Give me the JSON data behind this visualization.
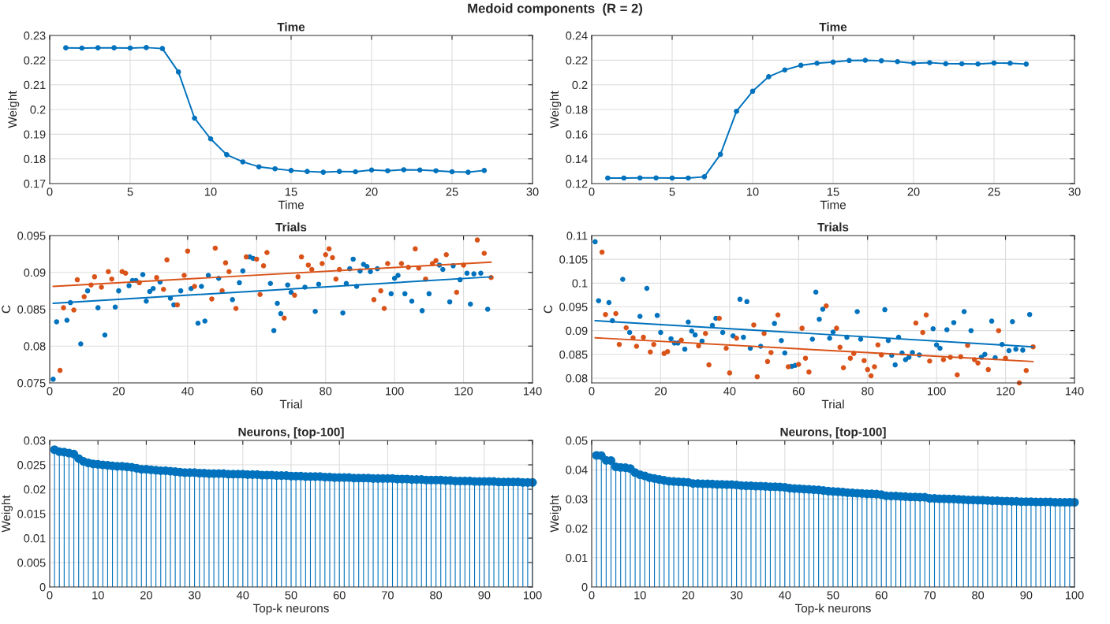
{
  "chart_data": [
    {
      "type": "line",
      "title": "Time",
      "xlabel": "Time",
      "ylabel": "Weight",
      "annotations": [
        "Medoid components  (R = 2)"
      ],
      "x": [
        1,
        2,
        3,
        4,
        5,
        6,
        7,
        8,
        9,
        10,
        11,
        12,
        13,
        14,
        15,
        16,
        17,
        18,
        19,
        20,
        21,
        22,
        23,
        24,
        25,
        26,
        27
      ],
      "series": [
        {
          "color": "#0072bd",
          "values": [
            0.225,
            0.2249,
            0.225,
            0.225,
            0.2249,
            0.2251,
            0.2247,
            0.2152,
            0.1965,
            0.1881,
            0.1817,
            0.1788,
            0.1768,
            0.176,
            0.1753,
            0.1749,
            0.1746,
            0.1749,
            0.1748,
            0.1755,
            0.1752,
            0.1756,
            0.1755,
            0.1752,
            0.1748,
            0.1746,
            0.1753
          ]
        }
      ],
      "xlim": [
        0,
        30
      ],
      "xticks": [
        0,
        5,
        10,
        15,
        20,
        25,
        30
      ],
      "ylim": [
        0.17,
        0.23
      ],
      "yticks": [
        0.17,
        0.18,
        0.19,
        0.2,
        0.21,
        0.22,
        0.23
      ],
      "grid": true,
      "marker": "circle",
      "line_style": "solid"
    },
    {
      "type": "line",
      "title": "Time",
      "xlabel": "Time",
      "ylabel": "Weight",
      "x": [
        1,
        2,
        3,
        4,
        5,
        6,
        7,
        8,
        9,
        10,
        11,
        12,
        13,
        14,
        15,
        16,
        17,
        18,
        19,
        20,
        21,
        22,
        23,
        24,
        25,
        26,
        27
      ],
      "series": [
        {
          "color": "#0072bd",
          "values": [
            0.1245,
            0.1245,
            0.1246,
            0.1246,
            0.1245,
            0.1245,
            0.1255,
            0.1437,
            0.1786,
            0.1948,
            0.2066,
            0.2121,
            0.2158,
            0.2175,
            0.2184,
            0.2197,
            0.2199,
            0.2195,
            0.2188,
            0.2175,
            0.218,
            0.2171,
            0.217,
            0.2169,
            0.2177,
            0.2175,
            0.2168
          ]
        }
      ],
      "xlim": [
        0,
        30
      ],
      "xticks": [
        0,
        5,
        10,
        15,
        20,
        25,
        30
      ],
      "ylim": [
        0.12,
        0.24
      ],
      "yticks": [
        0.12,
        0.14,
        0.16,
        0.18,
        0.2,
        0.22,
        0.24
      ],
      "grid": true,
      "marker": "circle",
      "line_style": "solid"
    },
    {
      "type": "scatter",
      "title": "Trials",
      "xlabel": "Trial",
      "ylabel": "C",
      "series": [
        {
          "type": "scatter",
          "color": "#0072bd",
          "x": [
            1,
            2,
            5,
            6,
            9,
            11,
            14,
            16,
            19,
            20,
            23,
            24,
            25,
            27,
            28,
            29,
            30,
            32,
            35,
            36,
            38,
            41,
            43,
            44,
            45,
            46,
            49,
            53,
            55,
            56,
            58,
            59,
            64,
            65,
            66,
            67,
            69,
            70,
            74,
            77,
            78,
            85,
            86,
            87,
            88,
            89,
            90,
            91,
            92,
            93,
            95,
            99,
            100,
            101,
            103,
            105,
            108,
            110,
            113,
            114,
            116,
            117,
            119,
            121,
            122,
            123,
            125,
            127
          ],
          "values": [
            0.0755,
            0.0833,
            0.0835,
            0.0859,
            0.0803,
            0.0875,
            0.0852,
            0.0815,
            0.0853,
            0.0875,
            0.0882,
            0.0889,
            0.0889,
            0.0897,
            0.0861,
            0.0874,
            0.0878,
            0.0887,
            0.0865,
            0.0856,
            0.0875,
            0.0878,
            0.0831,
            0.0881,
            0.0834,
            0.0896,
            0.0892,
            0.0863,
            0.0886,
            0.0902,
            0.0921,
            0.0919,
            0.0885,
            0.0821,
            0.0858,
            0.0844,
            0.0883,
            0.0873,
            0.088,
            0.0847,
            0.0884,
            0.0845,
            0.0885,
            0.0905,
            0.0918,
            0.0881,
            0.0902,
            0.0911,
            0.0908,
            0.0901,
            0.0905,
            0.0871,
            0.0892,
            0.0896,
            0.0871,
            0.0861,
            0.0848,
            0.0871,
            0.091,
            0.0904,
            0.086,
            0.0909,
            0.089,
            0.0899,
            0.0857,
            0.0898,
            0.0899,
            0.085
          ]
        },
        {
          "type": "scatter",
          "color": "#d95319",
          "x": [
            3,
            4,
            7,
            8,
            10,
            12,
            13,
            15,
            17,
            18,
            21,
            22,
            26,
            31,
            33,
            34,
            37,
            39,
            40,
            42,
            47,
            48,
            50,
            51,
            52,
            54,
            57,
            60,
            61,
            62,
            63,
            68,
            71,
            72,
            73,
            75,
            76,
            79,
            80,
            81,
            82,
            83,
            84,
            94,
            96,
            97,
            98,
            102,
            104,
            106,
            107,
            109,
            111,
            112,
            115,
            118,
            120,
            124,
            126,
            128
          ],
          "values": [
            0.0767,
            0.0852,
            0.0849,
            0.089,
            0.0867,
            0.0883,
            0.0894,
            0.088,
            0.0901,
            0.0891,
            0.0901,
            0.0899,
            0.0886,
            0.0893,
            0.0877,
            0.0917,
            0.0856,
            0.0896,
            0.0929,
            0.0881,
            0.0864,
            0.0933,
            0.0875,
            0.0913,
            0.0901,
            0.0851,
            0.0921,
            0.0918,
            0.087,
            0.0909,
            0.0927,
            0.0838,
            0.0869,
            0.0894,
            0.0921,
            0.091,
            0.0904,
            0.0912,
            0.0924,
            0.0932,
            0.092,
            0.0891,
            0.0904,
            0.0863,
            0.0875,
            0.0851,
            0.0912,
            0.0912,
            0.0907,
            0.0932,
            0.0906,
            0.0891,
            0.0912,
            0.0916,
            0.0924,
            0.0873,
            0.091,
            0.0944,
            0.0926,
            0.0893
          ]
        },
        {
          "type": "line",
          "color": "#0072bd",
          "x": [
            1,
            128
          ],
          "values": [
            0.0858,
            0.0894
          ]
        },
        {
          "type": "line",
          "color": "#d95319",
          "x": [
            1,
            128
          ],
          "values": [
            0.0881,
            0.0914
          ]
        }
      ],
      "xlim": [
        0,
        140
      ],
      "xticks": [
        0,
        20,
        40,
        60,
        80,
        100,
        120,
        140
      ],
      "ylim": [
        0.075,
        0.095
      ],
      "yticks": [
        0.075,
        0.08,
        0.085,
        0.09,
        0.095
      ],
      "grid": true
    },
    {
      "type": "scatter",
      "title": "Trials",
      "xlabel": "Trial",
      "ylabel": "C",
      "series": [
        {
          "type": "scatter",
          "color": "#0072bd",
          "x": [
            1,
            2,
            5,
            6,
            9,
            11,
            14,
            16,
            19,
            20,
            23,
            24,
            25,
            27,
            28,
            29,
            30,
            32,
            35,
            36,
            38,
            41,
            43,
            44,
            45,
            46,
            49,
            53,
            55,
            56,
            58,
            59,
            64,
            65,
            66,
            67,
            69,
            70,
            74,
            77,
            78,
            85,
            86,
            87,
            88,
            89,
            90,
            91,
            92,
            93,
            95,
            99,
            100,
            101,
            103,
            105,
            108,
            110,
            113,
            114,
            116,
            117,
            119,
            121,
            122,
            123,
            125,
            127
          ],
          "values": [
            0.1087,
            0.0963,
            0.0959,
            0.0921,
            0.1008,
            0.0896,
            0.093,
            0.0989,
            0.0932,
            0.0896,
            0.0883,
            0.0874,
            0.0874,
            0.0861,
            0.0918,
            0.0899,
            0.0891,
            0.0878,
            0.0911,
            0.0926,
            0.0896,
            0.0889,
            0.0966,
            0.0886,
            0.0961,
            0.0863,
            0.0867,
            0.0915,
            0.0879,
            0.0853,
            0.0825,
            0.0827,
            0.0882,
            0.0981,
            0.0924,
            0.0945,
            0.0884,
            0.0897,
            0.0886,
            0.094,
            0.0882,
            0.0944,
            0.0879,
            0.0848,
            0.0828,
            0.0886,
            0.0853,
            0.0839,
            0.0844,
            0.0854,
            0.0849,
            0.0904,
            0.087,
            0.0863,
            0.0902,
            0.0917,
            0.094,
            0.09,
            0.0844,
            0.085,
            0.092,
            0.0843,
            0.0871,
            0.0858,
            0.0919,
            0.0861,
            0.0859,
            0.0934
          ]
        },
        {
          "type": "scatter",
          "color": "#d95319",
          "x": [
            3,
            4,
            7,
            8,
            10,
            12,
            13,
            15,
            17,
            18,
            21,
            22,
            26,
            31,
            33,
            34,
            37,
            39,
            40,
            42,
            47,
            48,
            50,
            51,
            52,
            54,
            57,
            60,
            61,
            62,
            63,
            68,
            71,
            72,
            73,
            75,
            76,
            79,
            80,
            81,
            82,
            83,
            84,
            94,
            96,
            97,
            98,
            102,
            104,
            106,
            107,
            109,
            111,
            112,
            115,
            118,
            120,
            124,
            126,
            128
          ],
          "values": [
            0.1065,
            0.0934,
            0.0936,
            0.0871,
            0.0906,
            0.0885,
            0.0867,
            0.0886,
            0.0855,
            0.0871,
            0.0852,
            0.0856,
            0.088,
            0.0868,
            0.0894,
            0.0828,
            0.0926,
            0.0863,
            0.0811,
            0.0884,
            0.0912,
            0.0803,
            0.0894,
            0.0835,
            0.0854,
            0.0933,
            0.0824,
            0.0829,
            0.0905,
            0.0842,
            0.0813,
            0.0952,
            0.0905,
            0.0865,
            0.0822,
            0.0842,
            0.0852,
            0.0837,
            0.0818,
            0.0805,
            0.0824,
            0.087,
            0.0849,
            0.0916,
            0.0896,
            0.0933,
            0.0836,
            0.0839,
            0.0844,
            0.0807,
            0.0845,
            0.0869,
            0.0839,
            0.0832,
            0.0818,
            0.09,
            0.0842,
            0.079,
            0.0816,
            0.0866
          ]
        },
        {
          "type": "line",
          "color": "#0072bd",
          "x": [
            1,
            128
          ],
          "values": [
            0.0921,
            0.0866
          ]
        },
        {
          "type": "line",
          "color": "#d95319",
          "x": [
            1,
            128
          ],
          "values": [
            0.0885,
            0.0835
          ]
        }
      ],
      "xlim": [
        0,
        140
      ],
      "xticks": [
        0,
        20,
        40,
        60,
        80,
        100,
        120,
        140
      ],
      "ylim": [
        0.079,
        0.11
      ],
      "yticks": [
        0.08,
        0.085,
        0.09,
        0.095,
        0.1,
        0.105,
        0.11
      ],
      "grid": true
    },
    {
      "type": "lollipop",
      "title": "Neurons, [top-100]",
      "xlabel": "Top-k neurons",
      "ylabel": "Weight",
      "x": [
        1,
        2,
        3,
        4,
        5,
        6,
        7,
        8,
        9,
        10,
        11,
        12,
        13,
        14,
        15,
        16,
        17,
        18,
        19,
        20,
        21,
        22,
        23,
        24,
        25,
        26,
        27,
        28,
        29,
        30,
        31,
        32,
        33,
        34,
        35,
        36,
        37,
        38,
        39,
        40,
        41,
        42,
        43,
        44,
        45,
        46,
        47,
        48,
        49,
        50,
        51,
        52,
        53,
        54,
        55,
        56,
        57,
        58,
        59,
        60,
        61,
        62,
        63,
        64,
        65,
        66,
        67,
        68,
        69,
        70,
        71,
        72,
        73,
        74,
        75,
        76,
        77,
        78,
        79,
        80,
        81,
        82,
        83,
        84,
        85,
        86,
        87,
        88,
        89,
        90,
        91,
        92,
        93,
        94,
        95,
        96,
        97,
        98,
        99,
        100
      ],
      "series": [
        {
          "color": "#0072bd",
          "values": [
            0.0281,
            0.0277,
            0.0276,
            0.0274,
            0.0272,
            0.0263,
            0.0257,
            0.0254,
            0.0252,
            0.0251,
            0.025,
            0.0249,
            0.0248,
            0.0247,
            0.0247,
            0.0246,
            0.0245,
            0.0243,
            0.0241,
            0.0241,
            0.024,
            0.0239,
            0.0238,
            0.0238,
            0.0237,
            0.0236,
            0.0235,
            0.0234,
            0.0234,
            0.0234,
            0.0233,
            0.0233,
            0.0232,
            0.0232,
            0.0232,
            0.0232,
            0.0231,
            0.0231,
            0.0231,
            0.0231,
            0.023,
            0.023,
            0.023,
            0.0229,
            0.0229,
            0.0229,
            0.0228,
            0.0228,
            0.0228,
            0.0227,
            0.0227,
            0.0227,
            0.0226,
            0.0226,
            0.0226,
            0.0226,
            0.0225,
            0.0225,
            0.0224,
            0.0224,
            0.0224,
            0.0224,
            0.0223,
            0.0223,
            0.0223,
            0.0223,
            0.0222,
            0.0222,
            0.0222,
            0.0222,
            0.0222,
            0.0221,
            0.0221,
            0.0221,
            0.022,
            0.022,
            0.022,
            0.0219,
            0.0219,
            0.0219,
            0.0219,
            0.0218,
            0.0218,
            0.0217,
            0.0217,
            0.0217,
            0.0217,
            0.0216,
            0.0216,
            0.0216,
            0.0216,
            0.0216,
            0.0215,
            0.0215,
            0.0215,
            0.0215,
            0.0215,
            0.0214,
            0.0214,
            0.0214
          ]
        }
      ],
      "xlim": [
        0,
        100
      ],
      "xticks": [
        0,
        10,
        20,
        30,
        40,
        50,
        60,
        70,
        80,
        90,
        100
      ],
      "ylim": [
        0,
        0.03
      ],
      "yticks": [
        0,
        0.005,
        0.01,
        0.015,
        0.02,
        0.025,
        0.03
      ],
      "grid": true,
      "marker": "circle"
    },
    {
      "type": "lollipop",
      "title": "Neurons, [top-100]",
      "xlabel": "Top-k neurons",
      "ylabel": "Weight",
      "x": [
        1,
        2,
        3,
        4,
        5,
        6,
        7,
        8,
        9,
        10,
        11,
        12,
        13,
        14,
        15,
        16,
        17,
        18,
        19,
        20,
        21,
        22,
        23,
        24,
        25,
        26,
        27,
        28,
        29,
        30,
        31,
        32,
        33,
        34,
        35,
        36,
        37,
        38,
        39,
        40,
        41,
        42,
        43,
        44,
        45,
        46,
        47,
        48,
        49,
        50,
        51,
        52,
        53,
        54,
        55,
        56,
        57,
        58,
        59,
        60,
        61,
        62,
        63,
        64,
        65,
        66,
        67,
        68,
        69,
        70,
        71,
        72,
        73,
        74,
        75,
        76,
        77,
        78,
        79,
        80,
        81,
        82,
        83,
        84,
        85,
        86,
        87,
        88,
        89,
        90,
        91,
        92,
        93,
        94,
        95,
        96,
        97,
        98,
        99,
        100
      ],
      "series": [
        {
          "color": "#0072bd",
          "values": [
            0.0449,
            0.0448,
            0.0432,
            0.0431,
            0.041,
            0.0408,
            0.0407,
            0.0404,
            0.039,
            0.0383,
            0.0379,
            0.0373,
            0.037,
            0.0367,
            0.0364,
            0.0361,
            0.036,
            0.0359,
            0.0358,
            0.0357,
            0.0353,
            0.0353,
            0.0352,
            0.0352,
            0.0351,
            0.035,
            0.035,
            0.0349,
            0.0349,
            0.0348,
            0.0346,
            0.0345,
            0.0345,
            0.0344,
            0.0344,
            0.0343,
            0.0342,
            0.0342,
            0.0341,
            0.034,
            0.0337,
            0.0336,
            0.0335,
            0.0334,
            0.0333,
            0.0332,
            0.0331,
            0.0329,
            0.0327,
            0.0326,
            0.0325,
            0.0324,
            0.0322,
            0.0321,
            0.032,
            0.0319,
            0.0318,
            0.0318,
            0.0317,
            0.0315,
            0.0311,
            0.031,
            0.031,
            0.0309,
            0.0308,
            0.0307,
            0.0307,
            0.0306,
            0.0306,
            0.0302,
            0.0302,
            0.0301,
            0.0301,
            0.03,
            0.03,
            0.0299,
            0.0298,
            0.0297,
            0.0297,
            0.0296,
            0.0296,
            0.0295,
            0.0294,
            0.0294,
            0.0293,
            0.0293,
            0.0292,
            0.0292,
            0.0291,
            0.0291,
            0.0291,
            0.029,
            0.029,
            0.029,
            0.029,
            0.0289,
            0.0289,
            0.0289,
            0.0289,
            0.0289
          ]
        }
      ],
      "xlim": [
        0,
        100
      ],
      "xticks": [
        0,
        10,
        20,
        30,
        40,
        50,
        60,
        70,
        80,
        90,
        100
      ],
      "ylim": [
        0,
        0.05
      ],
      "yticks": [
        0,
        0.01,
        0.02,
        0.03,
        0.04,
        0.05
      ],
      "grid": true,
      "marker": "circle"
    }
  ]
}
